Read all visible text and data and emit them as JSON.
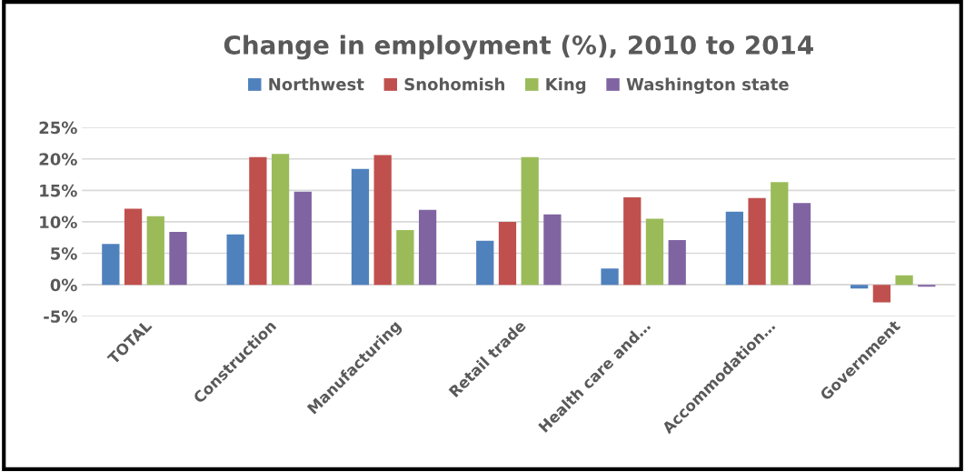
{
  "chart_data": {
    "type": "bar",
    "title": "Change in employment (%), 2010 to 2014",
    "categories": [
      "TOTAL",
      "Construction",
      "Manufacturing",
      "Retail trade",
      "Health care and…",
      "Accommodation…",
      "Government"
    ],
    "series": [
      {
        "name": "Northwest",
        "color": "#4f81bd",
        "values": [
          6.5,
          8.0,
          18.4,
          7.0,
          2.6,
          11.6,
          -0.6
        ]
      },
      {
        "name": "Snohomish",
        "color": "#c0504d",
        "values": [
          12.1,
          20.3,
          20.6,
          10.0,
          13.9,
          13.8,
          -2.8
        ]
      },
      {
        "name": "King",
        "color": "#9bbb59",
        "values": [
          10.9,
          20.8,
          8.7,
          20.3,
          10.5,
          16.3,
          1.5
        ]
      },
      {
        "name": "Washington state",
        "color": "#8064a2",
        "values": [
          8.4,
          14.8,
          11.9,
          11.2,
          7.1,
          13.0,
          -0.3
        ]
      }
    ],
    "ylim": [
      -5,
      25
    ],
    "yticks": [
      {
        "value": -5,
        "label": "-5%"
      },
      {
        "value": 0,
        "label": "0%"
      },
      {
        "value": 5,
        "label": "5%"
      },
      {
        "value": 10,
        "label": "10%"
      },
      {
        "value": 15,
        "label": "15%"
      },
      {
        "value": 20,
        "label": "20%"
      },
      {
        "value": 25,
        "label": "25%"
      }
    ],
    "grid": "y",
    "legend": "top"
  }
}
